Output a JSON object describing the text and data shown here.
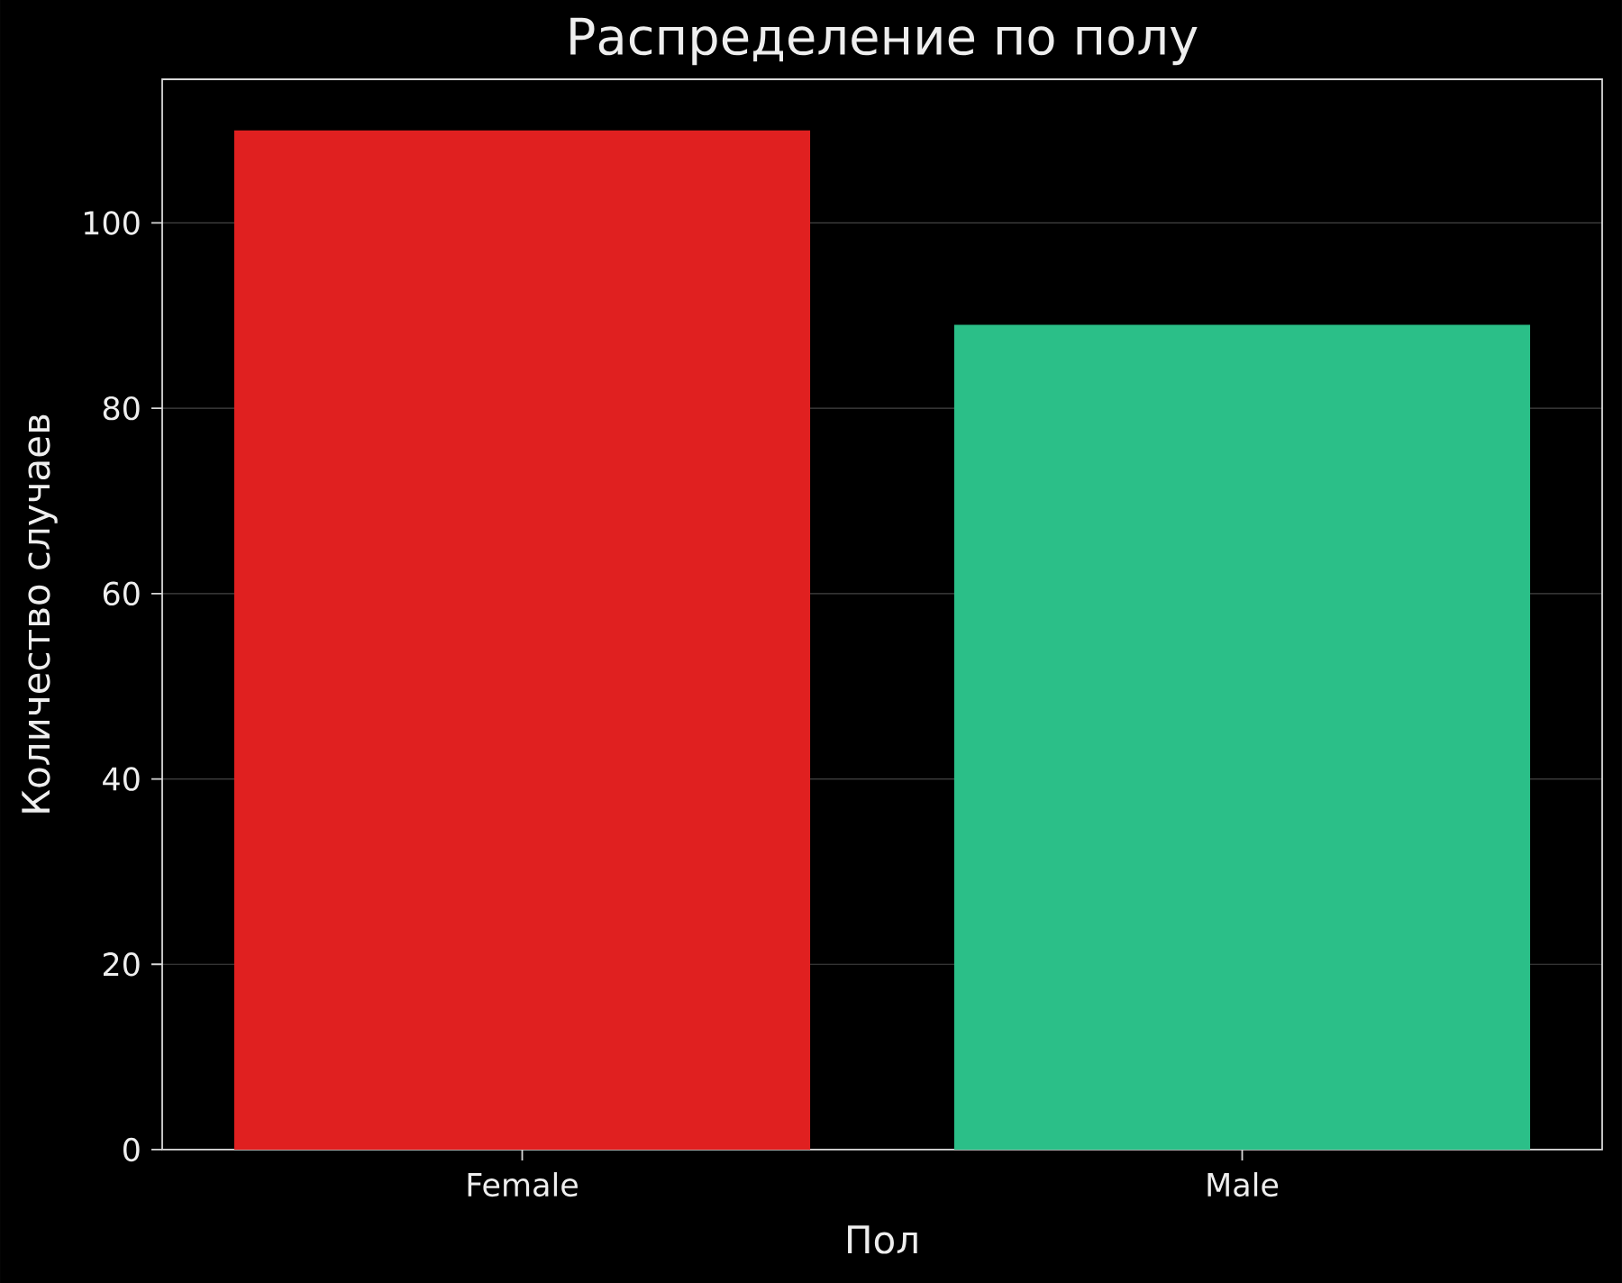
{
  "chart_data": {
    "type": "bar",
    "title": "Распределение по полу",
    "xlabel": "Пол",
    "ylabel": "Количество случаев",
    "categories": [
      "Female",
      "Male"
    ],
    "values": [
      110,
      89
    ],
    "colors": [
      "#e02020",
      "#2bbf88"
    ],
    "ylim": [
      0,
      115.5
    ],
    "yticks": [
      0,
      20,
      40,
      60,
      80,
      100
    ],
    "grid": "y"
  }
}
